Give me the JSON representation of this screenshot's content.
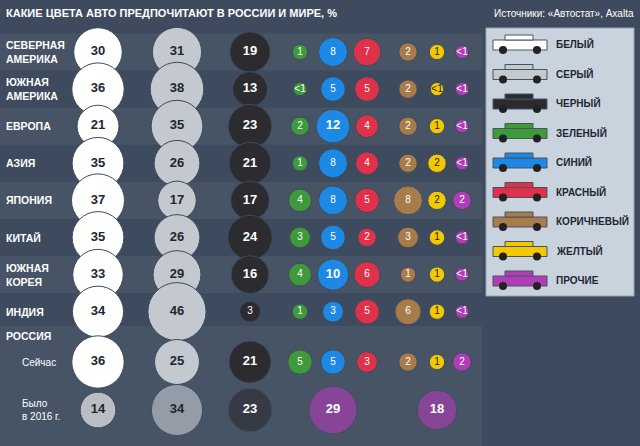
{
  "chart_data": {
    "type": "bubble",
    "title": "КАКИЕ ЦВЕТА АВТО ПРЕДПОЧИТАЮТ В РОССИИ И МИРЕ, %",
    "source": "Источники: «Автостат», Axalta",
    "data_labels": true,
    "tick_labels": false,
    "categories": [
      "БЕЛЫЙ",
      "СЕРЫЙ",
      "ЧЕРНЫЙ",
      "ЗЕЛЕНЫЙ",
      "СИНИЙ",
      "КРАСНЫЙ",
      "КОРИЧНЕВЫЙ",
      "ЖЕЛТЫЙ",
      "ПРОЧИЕ"
    ],
    "colors": [
      "#ffffff",
      "#c4c8cf",
      "#2b2b30",
      "#3e9a3a",
      "#1e88e5",
      "#e0314b",
      "#a87b4a",
      "#f2c800",
      "#b03cb8"
    ],
    "rows": [
      {
        "name": "СЕВЕРНАЯ АМЕРИКА",
        "values": [
          30,
          31,
          19,
          1,
          8,
          7,
          2,
          1,
          0.5
        ],
        "value_labels": [
          "30",
          "31",
          "19",
          "1",
          "8",
          "7",
          "2",
          "1",
          "<1"
        ]
      },
      {
        "name": "ЮЖНАЯ АМЕРИКА",
        "values": [
          36,
          38,
          13,
          0.5,
          5,
          5,
          2,
          0.5,
          0.5
        ],
        "value_labels": [
          "36",
          "38",
          "13",
          "<1",
          "5",
          "5",
          "2",
          "<1",
          "<1"
        ]
      },
      {
        "name": "ЕВРОПА",
        "values": [
          21,
          35,
          23,
          2,
          12,
          4,
          2,
          1,
          0.5
        ],
        "value_labels": [
          "21",
          "35",
          "23",
          "2",
          "12",
          "4",
          "2",
          "1",
          "<1"
        ]
      },
      {
        "name": "АЗИЯ",
        "values": [
          35,
          26,
          21,
          1,
          8,
          4,
          2,
          2,
          0.5
        ],
        "value_labels": [
          "35",
          "26",
          "21",
          "1",
          "8",
          "4",
          "2",
          "2",
          "<1"
        ]
      },
      {
        "name": "ЯПОНИЯ",
        "values": [
          37,
          17,
          17,
          4,
          8,
          5,
          8,
          2,
          2
        ],
        "value_labels": [
          "37",
          "17",
          "17",
          "4",
          "8",
          "5",
          "8",
          "2",
          "2"
        ]
      },
      {
        "name": "КИТАЙ",
        "values": [
          35,
          26,
          24,
          3,
          5,
          2,
          3,
          1,
          0.5
        ],
        "value_labels": [
          "35",
          "26",
          "24",
          "3",
          "5",
          "2",
          "3",
          "1",
          "<1"
        ]
      },
      {
        "name": "ЮЖНАЯ КОРЕЯ",
        "values": [
          33,
          29,
          16,
          4,
          10,
          6,
          1,
          1,
          0.5
        ],
        "value_labels": [
          "33",
          "29",
          "16",
          "4",
          "10",
          "6",
          "1",
          "1",
          "<1"
        ]
      },
      {
        "name": "ИНДИЯ",
        "values": [
          34,
          46,
          3,
          1,
          3,
          5,
          6,
          1,
          0.5
        ],
        "value_labels": [
          "34",
          "46",
          "3",
          "1",
          "3",
          "5",
          "6",
          "1",
          "<1"
        ]
      }
    ],
    "group": {
      "name": "РОССИЯ",
      "rows": [
        {
          "name": "Сейчас",
          "values": [
            36,
            25,
            21,
            5,
            5,
            3,
            2,
            1,
            2
          ],
          "value_labels": [
            "36",
            "25",
            "21",
            "5",
            "5",
            "3",
            "2",
            "1",
            "2"
          ]
        },
        {
          "name": "Было в 2016 г.",
          "values": [
            14,
            34,
            23,
            null,
            29,
            null,
            null,
            18,
            null
          ],
          "value_labels": [
            "14",
            "34",
            "23",
            null,
            "29",
            null,
            null,
            "18",
            null
          ],
          "colors": [
            "#ffffff",
            "#c4c8cf",
            "#2b2b30",
            null,
            "#b03cb8",
            null,
            null,
            "#b03cb8",
            null
          ]
        }
      ]
    }
  }
}
